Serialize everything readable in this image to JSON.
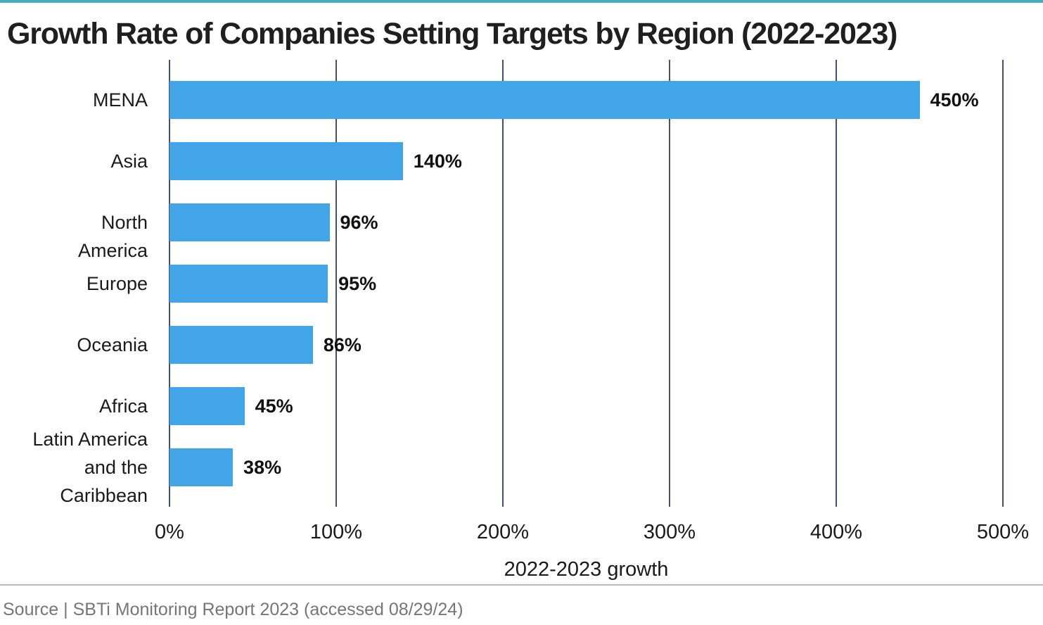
{
  "chart_data": {
    "type": "bar",
    "orientation": "horizontal",
    "title": "Growth Rate of Companies Setting Targets by Region (2022-2023)",
    "categories": [
      "MENA",
      "Asia",
      "North America",
      "Europe",
      "Oceania",
      "Africa",
      "Latin America and the Caribbean"
    ],
    "category_label_lines": [
      [
        "MENA"
      ],
      [
        "Asia"
      ],
      [
        "North",
        "America"
      ],
      [
        "Europe"
      ],
      [
        "Oceania"
      ],
      [
        "Africa"
      ],
      [
        "Latin America",
        "and the",
        "Caribbean"
      ]
    ],
    "values": [
      450,
      140,
      96,
      95,
      86,
      45,
      38
    ],
    "value_labels": [
      "450%",
      "140%",
      "96%",
      "95%",
      "86%",
      "45%",
      "38%"
    ],
    "xlabel": "2022-2023 growth",
    "xlim": [
      0,
      500
    ],
    "xticks": {
      "values": [
        0,
        100,
        200,
        300,
        400,
        500
      ],
      "labels": [
        "0%",
        "100%",
        "200%",
        "300%",
        "400%",
        "500%"
      ]
    },
    "grid": "vertical-gridlines-only",
    "legend": "none",
    "ylabel": ""
  },
  "footer": {
    "source_text": "Source | SBTi Monitoring Report 2023 (accessed 08/29/24)"
  },
  "colors": {
    "bar": "#42A5E8",
    "gridline": "#44516E",
    "top_border": "#4BACB9",
    "title_text": "#1F1F1F",
    "source_text": "#767676",
    "divider": "#B9B9B9"
  }
}
